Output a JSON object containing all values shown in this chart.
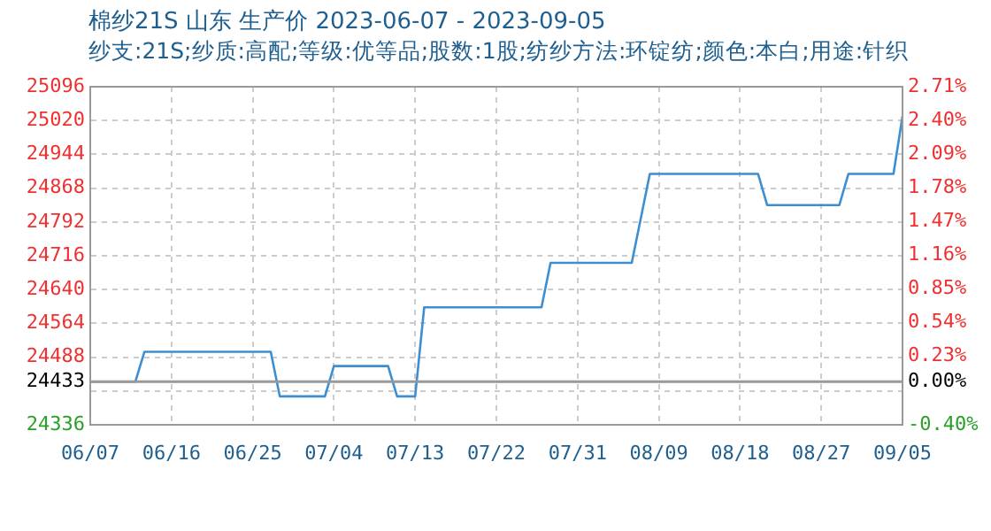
{
  "chart_data": {
    "type": "line",
    "title": "棉纱21S 山东 生产价 2023-06-07 - 2023-09-05",
    "subtitle": "纱支:21S;纱质:高配;等级:优等品;股数:1股;纺纱方法:环锭纺;颜色:本白;用途:针织",
    "x": [
      "2023-06-07",
      "2023-06-12",
      "2023-06-13",
      "2023-06-27",
      "2023-06-28",
      "2023-07-03",
      "2023-07-04",
      "2023-07-10",
      "2023-07-11",
      "2023-07-13",
      "2023-07-14",
      "2023-07-27",
      "2023-07-28",
      "2023-08-06",
      "2023-08-08",
      "2023-08-20",
      "2023-08-21",
      "2023-08-29",
      "2023-08-30",
      "2023-09-04",
      "2023-09-05"
    ],
    "series": [
      {
        "color": "#3d8fd1",
        "values": [
          24433,
          24433,
          24500,
          24500,
          24400,
          24400,
          24468,
          24468,
          24400,
          24400,
          24600,
          24600,
          24700,
          24700,
          24900,
          24900,
          24830,
          24830,
          24900,
          24900,
          25030
        ]
      }
    ],
    "xlim": [
      "2023-06-07",
      "2023-09-05"
    ],
    "xticks": [
      {
        "value": "2023-06-07",
        "label": "06/07"
      },
      {
        "value": "2023-06-16",
        "label": "06/16"
      },
      {
        "value": "2023-06-25",
        "label": "06/25"
      },
      {
        "value": "2023-07-04",
        "label": "07/04"
      },
      {
        "value": "2023-07-13",
        "label": "07/13"
      },
      {
        "value": "2023-07-22",
        "label": "07/22"
      },
      {
        "value": "2023-07-31",
        "label": "07/31"
      },
      {
        "value": "2023-08-09",
        "label": "08/09"
      },
      {
        "value": "2023-08-18",
        "label": "08/18"
      },
      {
        "value": "2023-08-27",
        "label": "08/27"
      },
      {
        "value": "2023-09-05",
        "label": "09/05"
      }
    ],
    "ylim": [
      24336,
      25096
    ],
    "yticks": [
      24336,
      {
        "value": 24412,
        "label": null
      },
      24433,
      24488,
      24564,
      24640,
      24716,
      24792,
      24868,
      24944,
      25020,
      25096
    ],
    "y2lim": [
      -0.4,
      2.71
    ],
    "y2ticks": [
      {
        "value": -0.4,
        "label": "-0.40%"
      },
      {
        "value": 0,
        "label": "0.00%"
      },
      {
        "value": 0.23,
        "label": "0.23%"
      },
      {
        "value": 0.54,
        "label": "0.54%"
      },
      {
        "value": 0.85,
        "label": "0.85%"
      },
      {
        "value": 1.16,
        "label": "1.16%"
      },
      {
        "value": 1.47,
        "label": "1.47%"
      },
      {
        "value": 1.78,
        "label": "1.78%"
      },
      {
        "value": 2.09,
        "label": "2.09%"
      },
      {
        "value": 2.4,
        "label": "2.40%"
      },
      {
        "value": 2.71,
        "label": "2.71%"
      }
    ],
    "ref_lines": [
      {
        "axis": "y",
        "value": 24433,
        "color": "#999999"
      }
    ],
    "grid": true,
    "legend": false,
    "marker": "none",
    "line_style": "solid"
  }
}
